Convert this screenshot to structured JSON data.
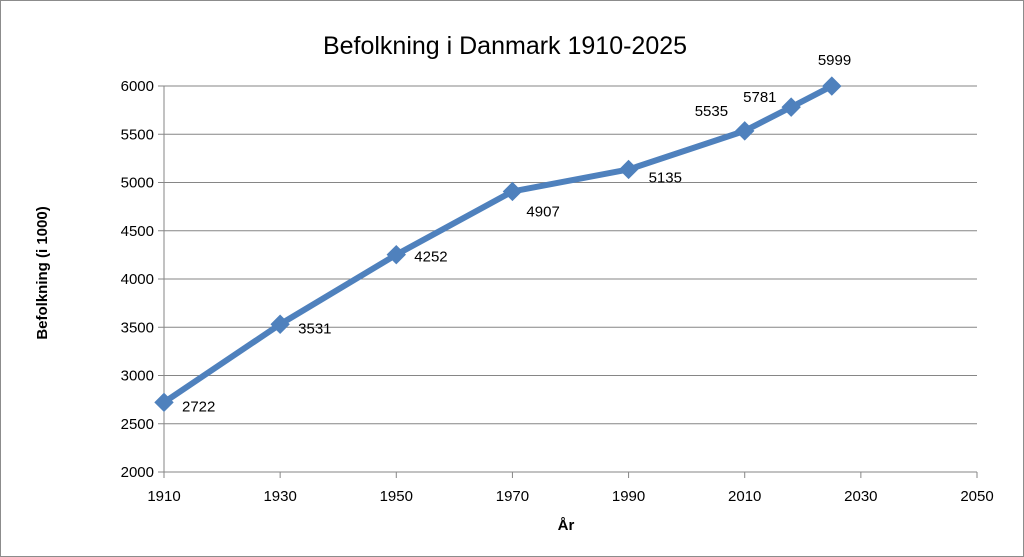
{
  "chart_data": {
    "type": "line",
    "title": "Befolkning i Danmark 1910-2025",
    "xlabel": "År",
    "ylabel": "Befolkning (i 1000)",
    "xlim": [
      1910,
      2050
    ],
    "ylim": [
      2000,
      6000
    ],
    "x_ticks": [
      1910,
      1930,
      1950,
      1970,
      1990,
      2010,
      2030,
      2050
    ],
    "y_ticks": [
      2000,
      2500,
      3000,
      3500,
      4000,
      4500,
      5000,
      5500,
      6000
    ],
    "grid": "horizontal",
    "legend": "none",
    "series": [
      {
        "color": "#4f81bd",
        "marker": "diamond",
        "points": [
          {
            "x": 1910,
            "y": 2722
          },
          {
            "x": 1930,
            "y": 3531
          },
          {
            "x": 1950,
            "y": 4252
          },
          {
            "x": 1970,
            "y": 4907
          },
          {
            "x": 1990,
            "y": 5135
          },
          {
            "x": 2010,
            "y": 5535
          },
          {
            "x": 2018,
            "y": 5781
          },
          {
            "x": 2025,
            "y": 5999
          }
        ]
      }
    ],
    "data_labels": [
      "2722",
      "3531",
      "4252",
      "4907",
      "5135",
      "5535",
      "5781",
      "5999"
    ]
  }
}
